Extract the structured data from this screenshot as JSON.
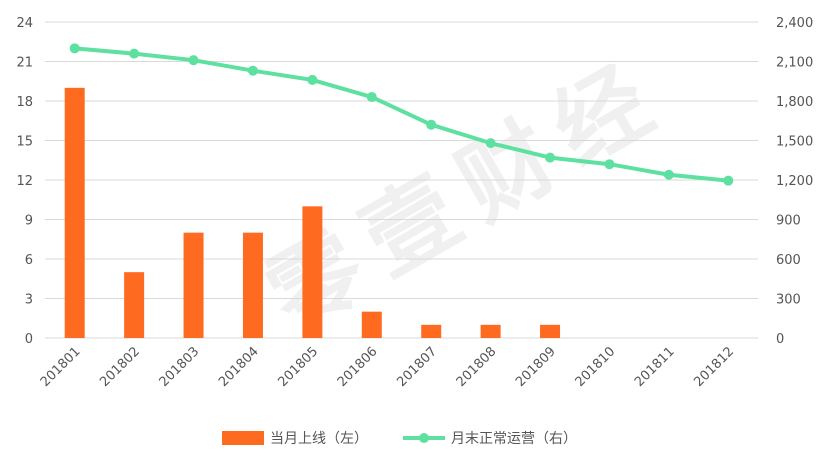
{
  "chart_data": {
    "type": "bar",
    "categories": [
      "201801",
      "201802",
      "201803",
      "201804",
      "201805",
      "201806",
      "201807",
      "201808",
      "201809",
      "201810",
      "201811",
      "201812"
    ],
    "series": [
      {
        "name": "当月上线（左）",
        "type": "bar",
        "axis": "left",
        "color": "#ff6a21",
        "values": [
          19,
          5,
          8,
          8,
          10,
          2,
          1,
          1,
          1,
          null,
          null,
          null
        ]
      },
      {
        "name": "月末正常运营（右）",
        "type": "line",
        "axis": "right",
        "color": "#5ee0a0",
        "values": [
          2200,
          2160,
          2110,
          2030,
          1960,
          1830,
          1620,
          1480,
          1370,
          1320,
          1240,
          1195
        ]
      }
    ],
    "y_left": {
      "min": 0,
      "max": 24,
      "ticks": [
        "0",
        "3",
        "6",
        "9",
        "12",
        "15",
        "18",
        "21",
        "24"
      ]
    },
    "y_right": {
      "min": 0,
      "max": 2400,
      "ticks": [
        "0",
        "300",
        "600",
        "900",
        "1,200",
        "1,500",
        "1,800",
        "2,100",
        "2,400"
      ]
    },
    "grid": true,
    "legend_position": "bottom",
    "watermark": "零壹财经"
  }
}
